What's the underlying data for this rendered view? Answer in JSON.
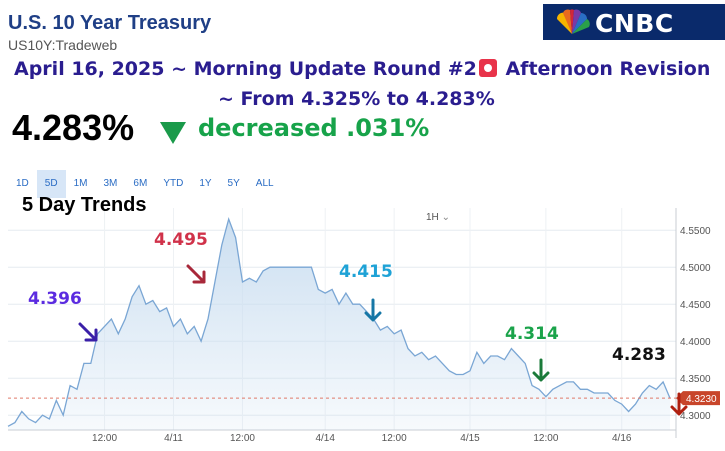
{
  "header": {
    "title": "U.S. 10 Year Treasury",
    "subtitle": "US10Y:Tradeweb",
    "logo": "CNBC"
  },
  "headline": {
    "line1_before": "April 16, 2025 ~ Morning Update Round #2",
    "line1_after": " Afternoon Revision",
    "line2": "~ From 4.325% to 4.283%",
    "icon": "alarm-icon"
  },
  "quote": {
    "price": "4.283%",
    "direction_icon": "down-triangle-icon",
    "change": "decreased .031%"
  },
  "ranges": {
    "items": [
      "1D",
      "5D",
      "1M",
      "3M",
      "6M",
      "YTD",
      "1Y",
      "5Y",
      "ALL"
    ],
    "active": "5D"
  },
  "trend_label": "5 Day Trends",
  "interval": "1H",
  "colors": {
    "line": "#7aa6d4",
    "area": "#c9ddf0",
    "price_tag": "#c8452a",
    "accent_up": "#17a34a"
  },
  "chart_data": {
    "type": "area",
    "ylim": [
      4.28,
      4.58
    ],
    "y_ticks": [
      "4.5500",
      "4.5000",
      "4.4500",
      "4.4000",
      "4.3500",
      "4.3000"
    ],
    "x_ticks": [
      {
        "label": "12:00",
        "x": 7
      },
      {
        "label": "4/11",
        "x": 12
      },
      {
        "label": "12:00",
        "x": 17
      },
      {
        "label": "4/14",
        "x": 23
      },
      {
        "label": "12:00",
        "x": 28
      },
      {
        "label": "4/15",
        "x": 33.5
      },
      {
        "label": "12:00",
        "x": 39
      },
      {
        "label": "4/16",
        "x": 44.5
      }
    ],
    "current_value": "4.3230",
    "last_value": 4.323,
    "points": [
      [
        0,
        4.285
      ],
      [
        0.5,
        4.29
      ],
      [
        1,
        4.305
      ],
      [
        1.5,
        4.295
      ],
      [
        2,
        4.29
      ],
      [
        2.5,
        4.3
      ],
      [
        3,
        4.295
      ],
      [
        3.5,
        4.32
      ],
      [
        4,
        4.3
      ],
      [
        4.5,
        4.34
      ],
      [
        5,
        4.335
      ],
      [
        5.5,
        4.37
      ],
      [
        6,
        4.37
      ],
      [
        6.5,
        4.41
      ],
      [
        7,
        4.42
      ],
      [
        7.5,
        4.43
      ],
      [
        8,
        4.41
      ],
      [
        8.5,
        4.43
      ],
      [
        9,
        4.46
      ],
      [
        9.5,
        4.475
      ],
      [
        10,
        4.45
      ],
      [
        10.5,
        4.455
      ],
      [
        11,
        4.44
      ],
      [
        11.5,
        4.445
      ],
      [
        12,
        4.42
      ],
      [
        12.5,
        4.43
      ],
      [
        13,
        4.41
      ],
      [
        13.5,
        4.42
      ],
      [
        14,
        4.4
      ],
      [
        14.5,
        4.43
      ],
      [
        15,
        4.48
      ],
      [
        15.5,
        4.53
      ],
      [
        16,
        4.565
      ],
      [
        16.5,
        4.54
      ],
      [
        17,
        4.48
      ],
      [
        17.5,
        4.485
      ],
      [
        18,
        4.48
      ],
      [
        18.5,
        4.495
      ],
      [
        19,
        4.5
      ],
      [
        19.5,
        4.5
      ],
      [
        20,
        4.5
      ],
      [
        21,
        4.5
      ],
      [
        22,
        4.5
      ],
      [
        22.5,
        4.47
      ],
      [
        23,
        4.465
      ],
      [
        23.5,
        4.47
      ],
      [
        24,
        4.45
      ],
      [
        24.5,
        4.465
      ],
      [
        25,
        4.45
      ],
      [
        25.5,
        4.45
      ],
      [
        26,
        4.44
      ],
      [
        26.5,
        4.43
      ],
      [
        27,
        4.415
      ],
      [
        27.5,
        4.42
      ],
      [
        28,
        4.41
      ],
      [
        28.5,
        4.415
      ],
      [
        29,
        4.39
      ],
      [
        29.5,
        4.38
      ],
      [
        30,
        4.385
      ],
      [
        30.5,
        4.375
      ],
      [
        31,
        4.38
      ],
      [
        31.5,
        4.37
      ],
      [
        32,
        4.36
      ],
      [
        32.5,
        4.355
      ],
      [
        33,
        4.355
      ],
      [
        33.5,
        4.36
      ],
      [
        34,
        4.385
      ],
      [
        34.5,
        4.37
      ],
      [
        35,
        4.38
      ],
      [
        35.5,
        4.38
      ],
      [
        36,
        4.375
      ],
      [
        36.5,
        4.39
      ],
      [
        37,
        4.38
      ],
      [
        37.5,
        4.37
      ],
      [
        38,
        4.34
      ],
      [
        38.5,
        4.335
      ],
      [
        39,
        4.325
      ],
      [
        39.5,
        4.335
      ],
      [
        40,
        4.34
      ],
      [
        40.5,
        4.345
      ],
      [
        41,
        4.345
      ],
      [
        41.5,
        4.335
      ],
      [
        42,
        4.335
      ],
      [
        42.5,
        4.33
      ],
      [
        43,
        4.33
      ],
      [
        43.5,
        4.33
      ],
      [
        44,
        4.32
      ],
      [
        44.5,
        4.315
      ],
      [
        45,
        4.305
      ],
      [
        45.5,
        4.315
      ],
      [
        46,
        4.33
      ],
      [
        46.5,
        4.34
      ],
      [
        47,
        4.335
      ],
      [
        47.5,
        4.345
      ],
      [
        48,
        4.323
      ]
    ],
    "annotations": [
      {
        "label": "4.396",
        "x": 5.5,
        "y": 4.41,
        "color": "#5b2be0",
        "arrow_color": "#3a1fa8",
        "arrow_dir": "down-right"
      },
      {
        "label": "4.495",
        "x": 15.0,
        "y": 4.52,
        "color": "#d0324a",
        "arrow_color": "#a8283a",
        "arrow_dir": "down-right"
      },
      {
        "label": "4.415",
        "x": 27.0,
        "y": 4.445,
        "color": "#1ea2d6",
        "arrow_color": "#1677a6",
        "arrow_dir": "down"
      },
      {
        "label": "4.314",
        "x": 39.0,
        "y": 4.345,
        "color": "#1aa34a",
        "arrow_color": "#1a7a3a",
        "arrow_dir": "down"
      },
      {
        "label": "4.283",
        "x": 48.3,
        "y": 4.31,
        "color": "#111111",
        "arrow_color": "#b02010",
        "arrow_dir": "down"
      }
    ]
  }
}
